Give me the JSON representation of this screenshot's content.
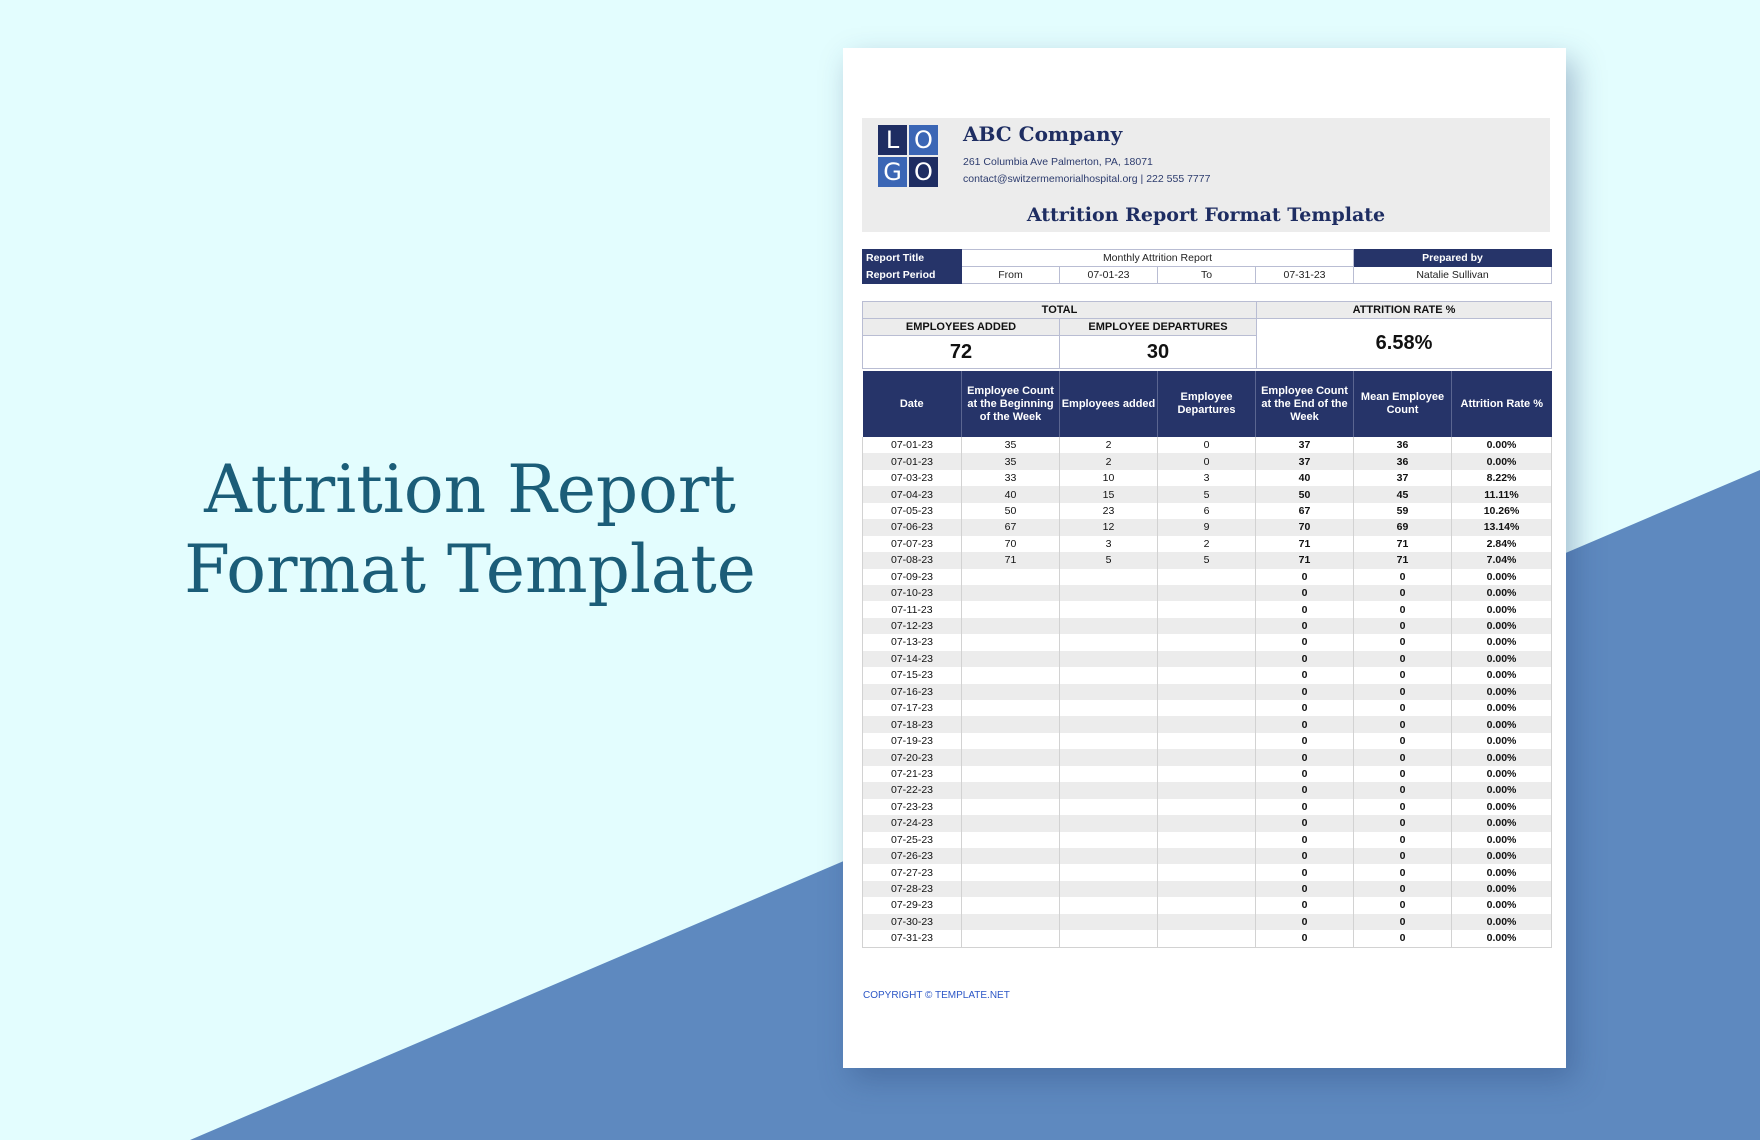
{
  "hero": {
    "line1": "Attrition Report",
    "line2": "Format Template"
  },
  "company": {
    "logo": {
      "l1": "L",
      "l2": "O",
      "l3": "G",
      "l4": "O"
    },
    "name": "ABC Company",
    "address": "261 Columbia Ave Palmerton, PA, 18071",
    "contact": "contact@switzermemorialhospital.org | 222 555 7777"
  },
  "document_title": "Attrition Report Format Template",
  "info": {
    "report_title_label": "Report Title",
    "report_title": "Monthly Attrition Report",
    "prepared_by_label": "Prepared by",
    "report_period_label": "Report Period",
    "from_label": "From",
    "from_date": "07-01-23",
    "to_label": "To",
    "to_date": "07-31-23",
    "prepared_by": "Natalie Sullivan"
  },
  "summary": {
    "total_label": "TOTAL",
    "attrition_rate_label": "ATTRITION RATE %",
    "employees_added_label": "EMPLOYEES ADDED",
    "employee_departures_label": "EMPLOYEE DEPARTURES",
    "employees_added": "72",
    "employee_departures": "30",
    "attrition_rate": "6.58%"
  },
  "table": {
    "headers": [
      "Date",
      "Employee Count at the Beginning of the Week",
      "Employees added",
      "Employee Departures",
      "Employee Count at the End of the Week",
      "Mean Employee Count",
      "Attrition Rate %"
    ],
    "rows": [
      [
        "07-01-23",
        "35",
        "2",
        "0",
        "37",
        "36",
        "0.00%"
      ],
      [
        "07-01-23",
        "35",
        "2",
        "0",
        "37",
        "36",
        "0.00%"
      ],
      [
        "07-03-23",
        "33",
        "10",
        "3",
        "40",
        "37",
        "8.22%"
      ],
      [
        "07-04-23",
        "40",
        "15",
        "5",
        "50",
        "45",
        "11.11%"
      ],
      [
        "07-05-23",
        "50",
        "23",
        "6",
        "67",
        "59",
        "10.26%"
      ],
      [
        "07-06-23",
        "67",
        "12",
        "9",
        "70",
        "69",
        "13.14%"
      ],
      [
        "07-07-23",
        "70",
        "3",
        "2",
        "71",
        "71",
        "2.84%"
      ],
      [
        "07-08-23",
        "71",
        "5",
        "5",
        "71",
        "71",
        "7.04%"
      ],
      [
        "07-09-23",
        "",
        "",
        "",
        "0",
        "0",
        "0.00%"
      ],
      [
        "07-10-23",
        "",
        "",
        "",
        "0",
        "0",
        "0.00%"
      ],
      [
        "07-11-23",
        "",
        "",
        "",
        "0",
        "0",
        "0.00%"
      ],
      [
        "07-12-23",
        "",
        "",
        "",
        "0",
        "0",
        "0.00%"
      ],
      [
        "07-13-23",
        "",
        "",
        "",
        "0",
        "0",
        "0.00%"
      ],
      [
        "07-14-23",
        "",
        "",
        "",
        "0",
        "0",
        "0.00%"
      ],
      [
        "07-15-23",
        "",
        "",
        "",
        "0",
        "0",
        "0.00%"
      ],
      [
        "07-16-23",
        "",
        "",
        "",
        "0",
        "0",
        "0.00%"
      ],
      [
        "07-17-23",
        "",
        "",
        "",
        "0",
        "0",
        "0.00%"
      ],
      [
        "07-18-23",
        "",
        "",
        "",
        "0",
        "0",
        "0.00%"
      ],
      [
        "07-19-23",
        "",
        "",
        "",
        "0",
        "0",
        "0.00%"
      ],
      [
        "07-20-23",
        "",
        "",
        "",
        "0",
        "0",
        "0.00%"
      ],
      [
        "07-21-23",
        "",
        "",
        "",
        "0",
        "0",
        "0.00%"
      ],
      [
        "07-22-23",
        "",
        "",
        "",
        "0",
        "0",
        "0.00%"
      ],
      [
        "07-23-23",
        "",
        "",
        "",
        "0",
        "0",
        "0.00%"
      ],
      [
        "07-24-23",
        "",
        "",
        "",
        "0",
        "0",
        "0.00%"
      ],
      [
        "07-25-23",
        "",
        "",
        "",
        "0",
        "0",
        "0.00%"
      ],
      [
        "07-26-23",
        "",
        "",
        "",
        "0",
        "0",
        "0.00%"
      ],
      [
        "07-27-23",
        "",
        "",
        "",
        "0",
        "0",
        "0.00%"
      ],
      [
        "07-28-23",
        "",
        "",
        "",
        "0",
        "0",
        "0.00%"
      ],
      [
        "07-29-23",
        "",
        "",
        "",
        "0",
        "0",
        "0.00%"
      ],
      [
        "07-30-23",
        "",
        "",
        "",
        "0",
        "0",
        "0.00%"
      ],
      [
        "07-31-23",
        "",
        "",
        "",
        "0",
        "0",
        "0.00%"
      ]
    ]
  },
  "copyright": "COPYRIGHT © TEMPLATE.NET",
  "colors": {
    "background": "#e3fdfe",
    "stripe": "#5e89bf",
    "navy": "#263469",
    "hero_text": "#1b5d78",
    "header_grey": "#ececec"
  }
}
